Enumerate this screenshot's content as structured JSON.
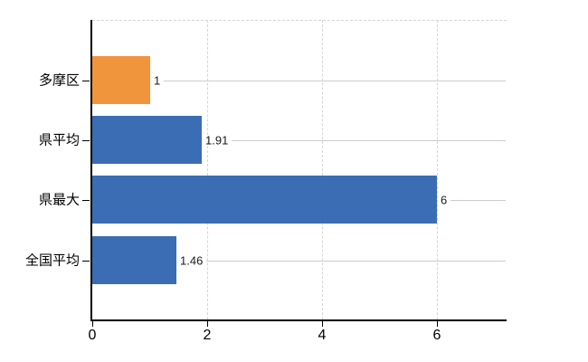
{
  "chart_data": {
    "type": "bar",
    "orientation": "horizontal",
    "title": "",
    "categories": [
      "多摩区",
      "県平均",
      "県最大",
      "全国平均"
    ],
    "values": [
      1,
      1.91,
      6,
      1.46
    ],
    "value_labels": [
      "1",
      "1.91",
      "6",
      "1.46"
    ],
    "bar_colors": [
      "#F0953C",
      "#3A6DB3",
      "#3A6DB3",
      "#3A6DB3"
    ],
    "x_ticks": [
      0,
      2,
      4,
      6
    ],
    "x_tick_labels": [
      "0",
      "2",
      "4",
      "6"
    ],
    "xlim": [
      0,
      7.21
    ],
    "grid": "vertical-dashed",
    "legend": "none",
    "xlabel": "",
    "ylabel": ""
  },
  "colors": {
    "bar_orange": "#F0953C",
    "bar_blue": "#3A6DB3",
    "grid_line": "#D5D5D5",
    "leader_line": "#C9CFC8",
    "axis": "#000000",
    "value_text": "#1A1A1A",
    "label_text": "#000000",
    "background": "#FFFFFF"
  }
}
